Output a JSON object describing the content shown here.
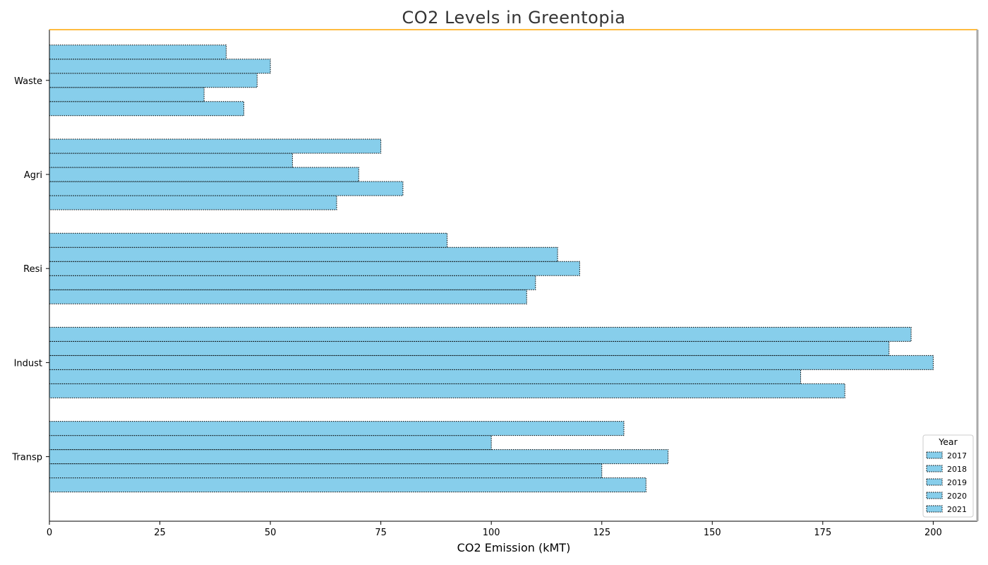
{
  "chart_data": {
    "type": "bar",
    "orientation": "horizontal",
    "title": "CO2 Levels in Greentopia",
    "xlabel": "CO2 Emission (kMT)",
    "ylabel": "",
    "categories": [
      "Transp",
      "Indust",
      "Resi",
      "Agri",
      "Waste"
    ],
    "series": [
      {
        "name": "2017",
        "values": [
          135,
          180,
          108,
          65,
          44
        ]
      },
      {
        "name": "2018",
        "values": [
          125,
          170,
          110,
          80,
          35
        ]
      },
      {
        "name": "2019",
        "values": [
          140,
          200,
          120,
          70,
          47
        ]
      },
      {
        "name": "2020",
        "values": [
          100,
          190,
          115,
          55,
          50
        ]
      },
      {
        "name": "2021",
        "values": [
          130,
          195,
          90,
          75,
          40
        ]
      }
    ],
    "xlim": [
      0,
      210
    ],
    "xticks": [
      0,
      25,
      50,
      75,
      100,
      125,
      150,
      175,
      200
    ],
    "grid": false,
    "legend": {
      "title": "Year",
      "placement": "lower-right"
    },
    "colors": {
      "bar_fill": "#87ceeb",
      "bar_edge": "#000000",
      "top_spine": "#ffa500",
      "right_spine": "#aaaaaa"
    }
  }
}
